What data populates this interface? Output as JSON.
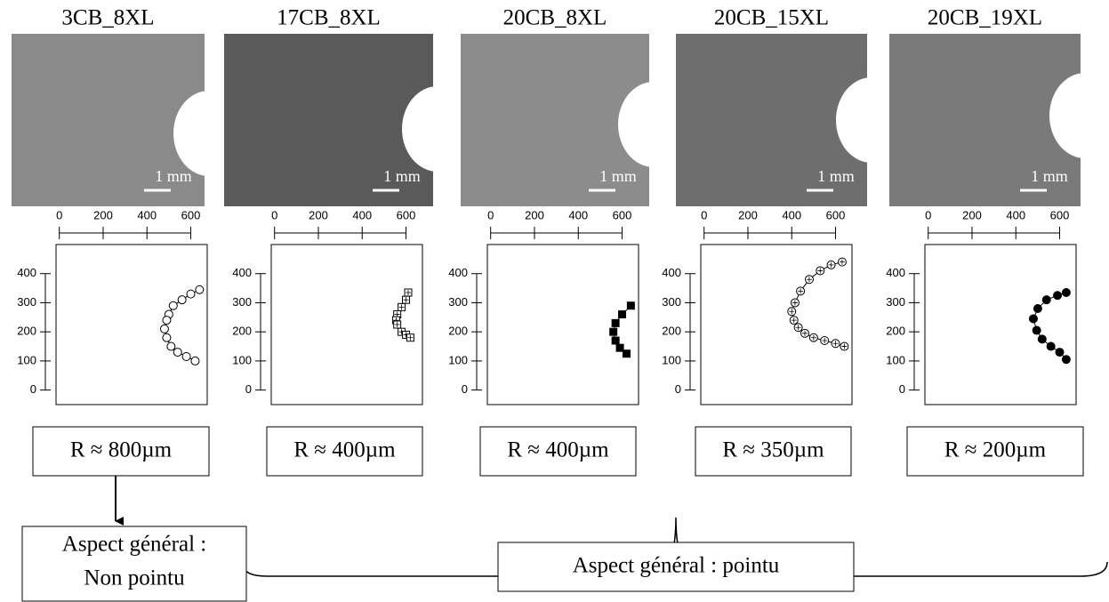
{
  "chart_data": [
    {
      "type": "scatter",
      "title": "3CB_8XL",
      "scale_label": "1 mm",
      "annotation": "R ≈ 800µm",
      "xlim": [
        -15,
        675
      ],
      "xticks": [
        0,
        200,
        400,
        600
      ],
      "ylim": [
        -50,
        500
      ],
      "yticks": [
        0,
        100,
        200,
        300,
        400
      ],
      "series": [
        {
          "marker": "open-circle",
          "color": "#000000",
          "x": [
            640,
            600,
            560,
            520,
            500,
            490,
            480,
            490,
            510,
            540,
            580,
            620
          ],
          "values": [
            345,
            330,
            310,
            290,
            260,
            240,
            210,
            180,
            150,
            130,
            115,
            100
          ]
        }
      ]
    },
    {
      "type": "scatter",
      "title": "17CB_8XL",
      "scale_label": "1 mm",
      "annotation": "R ≈ 400µm",
      "xlim": [
        -15,
        675
      ],
      "xticks": [
        0,
        200,
        400,
        600
      ],
      "ylim": [
        -50,
        500
      ],
      "yticks": [
        0,
        100,
        200,
        300,
        400
      ],
      "series": [
        {
          "marker": "crossed-square",
          "color": "#000000",
          "x": [
            610,
            600,
            580,
            560,
            555,
            560,
            580,
            600,
            620
          ],
          "values": [
            335,
            310,
            285,
            260,
            240,
            225,
            200,
            190,
            180
          ]
        }
      ]
    },
    {
      "type": "scatter",
      "title": "20CB_8XL",
      "scale_label": "1 mm",
      "annotation": "R ≈ 400µm",
      "xlim": [
        -15,
        675
      ],
      "xticks": [
        0,
        200,
        400,
        600
      ],
      "ylim": [
        -50,
        500
      ],
      "yticks": [
        0,
        100,
        200,
        300,
        400
      ],
      "series": [
        {
          "marker": "filled-square",
          "color": "#000000",
          "x": [
            640,
            600,
            570,
            560,
            570,
            590,
            620
          ],
          "values": [
            290,
            260,
            230,
            200,
            170,
            145,
            125
          ]
        }
      ]
    },
    {
      "type": "scatter",
      "title": "20CB_15XL",
      "scale_label": "1 mm",
      "annotation": "R ≈ 350µm",
      "xlim": [
        -15,
        675
      ],
      "xticks": [
        0,
        200,
        400,
        600
      ],
      "ylim": [
        -50,
        500
      ],
      "yticks": [
        0,
        100,
        200,
        300,
        400
      ],
      "series": [
        {
          "marker": "crossed-circle",
          "color": "#000000",
          "x": [
            630,
            580,
            530,
            480,
            440,
            415,
            400,
            410,
            430,
            460,
            500,
            550,
            600,
            640
          ],
          "values": [
            440,
            430,
            410,
            380,
            340,
            300,
            270,
            240,
            215,
            195,
            180,
            170,
            160,
            150
          ]
        }
      ]
    },
    {
      "type": "scatter",
      "title": "20CB_19XL",
      "scale_label": "1 mm",
      "annotation": "R ≈ 200µm",
      "xlim": [
        -15,
        675
      ],
      "xticks": [
        0,
        200,
        400,
        600
      ],
      "ylim": [
        -50,
        500
      ],
      "yticks": [
        0,
        100,
        200,
        300,
        400
      ],
      "series": [
        {
          "marker": "filled-circle",
          "color": "#000000",
          "x": [
            630,
            590,
            540,
            500,
            480,
            495,
            520,
            560,
            600,
            630
          ],
          "values": [
            335,
            325,
            310,
            280,
            245,
            205,
            175,
            150,
            130,
            105
          ]
        }
      ]
    }
  ],
  "conclusions": [
    {
      "lines": [
        "Aspect général :",
        "Non pointu"
      ]
    },
    {
      "lines": [
        "Aspect général : pointu"
      ]
    }
  ]
}
